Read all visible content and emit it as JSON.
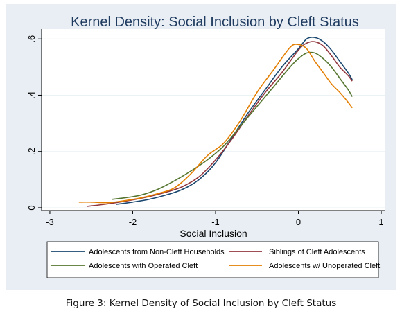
{
  "chart_data": {
    "type": "line",
    "title": "Kernel Density: Social Inclusion by Cleft Status",
    "xlabel": "Social Inclusion",
    "ylabel": "",
    "xlim": [
      -3.1,
      1.05
    ],
    "ylim": [
      -0.01,
      0.635
    ],
    "xticks": [
      {
        "value": -3,
        "label": "-3"
      },
      {
        "value": -2,
        "label": "-2"
      },
      {
        "value": -1,
        "label": "-1"
      },
      {
        "value": 0,
        "label": "0"
      },
      {
        "value": 1,
        "label": "1"
      }
    ],
    "yticks": [
      {
        "value": 0,
        "label": "0"
      },
      {
        "value": 0.2,
        "label": ".2"
      },
      {
        "value": 0.4,
        "label": ".4"
      },
      {
        "value": 0.6,
        "label": ".6"
      }
    ],
    "grid": "horizontal",
    "legend_position": "bottom",
    "series": [
      {
        "name": "Adolescents from Non-Cleft Households",
        "color": "#1a476f",
        "points": [
          [
            -2.2,
            0.012
          ],
          [
            -2.0,
            0.02
          ],
          [
            -1.8,
            0.03
          ],
          [
            -1.6,
            0.045
          ],
          [
            -1.4,
            0.065
          ],
          [
            -1.2,
            0.1
          ],
          [
            -1.0,
            0.16
          ],
          [
            -0.8,
            0.25
          ],
          [
            -0.6,
            0.34
          ],
          [
            -0.4,
            0.42
          ],
          [
            -0.2,
            0.5
          ],
          [
            0.0,
            0.565
          ],
          [
            0.1,
            0.6
          ],
          [
            0.2,
            0.605
          ],
          [
            0.3,
            0.59
          ],
          [
            0.4,
            0.56
          ],
          [
            0.5,
            0.52
          ],
          [
            0.6,
            0.48
          ],
          [
            0.65,
            0.455
          ]
        ]
      },
      {
        "name": "Siblings of Cleft Adolescents",
        "color": "#90353b",
        "points": [
          [
            -2.55,
            0.005
          ],
          [
            -2.4,
            0.01
          ],
          [
            -2.2,
            0.018
          ],
          [
            -2.0,
            0.028
          ],
          [
            -1.8,
            0.04
          ],
          [
            -1.6,
            0.055
          ],
          [
            -1.4,
            0.075
          ],
          [
            -1.2,
            0.11
          ],
          [
            -1.0,
            0.17
          ],
          [
            -0.8,
            0.245
          ],
          [
            -0.6,
            0.33
          ],
          [
            -0.4,
            0.41
          ],
          [
            -0.2,
            0.48
          ],
          [
            0.0,
            0.56
          ],
          [
            0.1,
            0.585
          ],
          [
            0.2,
            0.59
          ],
          [
            0.3,
            0.575
          ],
          [
            0.4,
            0.54
          ],
          [
            0.5,
            0.5
          ],
          [
            0.6,
            0.47
          ],
          [
            0.65,
            0.45
          ]
        ]
      },
      {
        "name": "Adolescents with Operated Cleft",
        "color": "#55752f",
        "points": [
          [
            -2.25,
            0.03
          ],
          [
            -2.1,
            0.035
          ],
          [
            -1.9,
            0.045
          ],
          [
            -1.7,
            0.065
          ],
          [
            -1.5,
            0.095
          ],
          [
            -1.3,
            0.13
          ],
          [
            -1.1,
            0.17
          ],
          [
            -0.9,
            0.22
          ],
          [
            -0.7,
            0.29
          ],
          [
            -0.5,
            0.36
          ],
          [
            -0.3,
            0.43
          ],
          [
            -0.1,
            0.5
          ],
          [
            0.0,
            0.53
          ],
          [
            0.1,
            0.55
          ],
          [
            0.2,
            0.55
          ],
          [
            0.3,
            0.53
          ],
          [
            0.4,
            0.5
          ],
          [
            0.5,
            0.46
          ],
          [
            0.6,
            0.42
          ],
          [
            0.65,
            0.395
          ]
        ]
      },
      {
        "name": "Adolescents w/ Unoperated Cleft",
        "color": "#e37e00",
        "points": [
          [
            -2.65,
            0.02
          ],
          [
            -2.5,
            0.02
          ],
          [
            -2.3,
            0.018
          ],
          [
            -2.1,
            0.025
          ],
          [
            -1.9,
            0.035
          ],
          [
            -1.7,
            0.05
          ],
          [
            -1.5,
            0.07
          ],
          [
            -1.3,
            0.12
          ],
          [
            -1.1,
            0.185
          ],
          [
            -0.9,
            0.23
          ],
          [
            -0.7,
            0.31
          ],
          [
            -0.5,
            0.41
          ],
          [
            -0.3,
            0.49
          ],
          [
            -0.1,
            0.57
          ],
          [
            0.0,
            0.58
          ],
          [
            0.1,
            0.565
          ],
          [
            0.2,
            0.52
          ],
          [
            0.3,
            0.48
          ],
          [
            0.4,
            0.44
          ],
          [
            0.5,
            0.41
          ],
          [
            0.6,
            0.375
          ],
          [
            0.65,
            0.355
          ]
        ]
      }
    ]
  },
  "caption": "Figure 3: Kernel Density of Social Inclusion by Cleft Status"
}
